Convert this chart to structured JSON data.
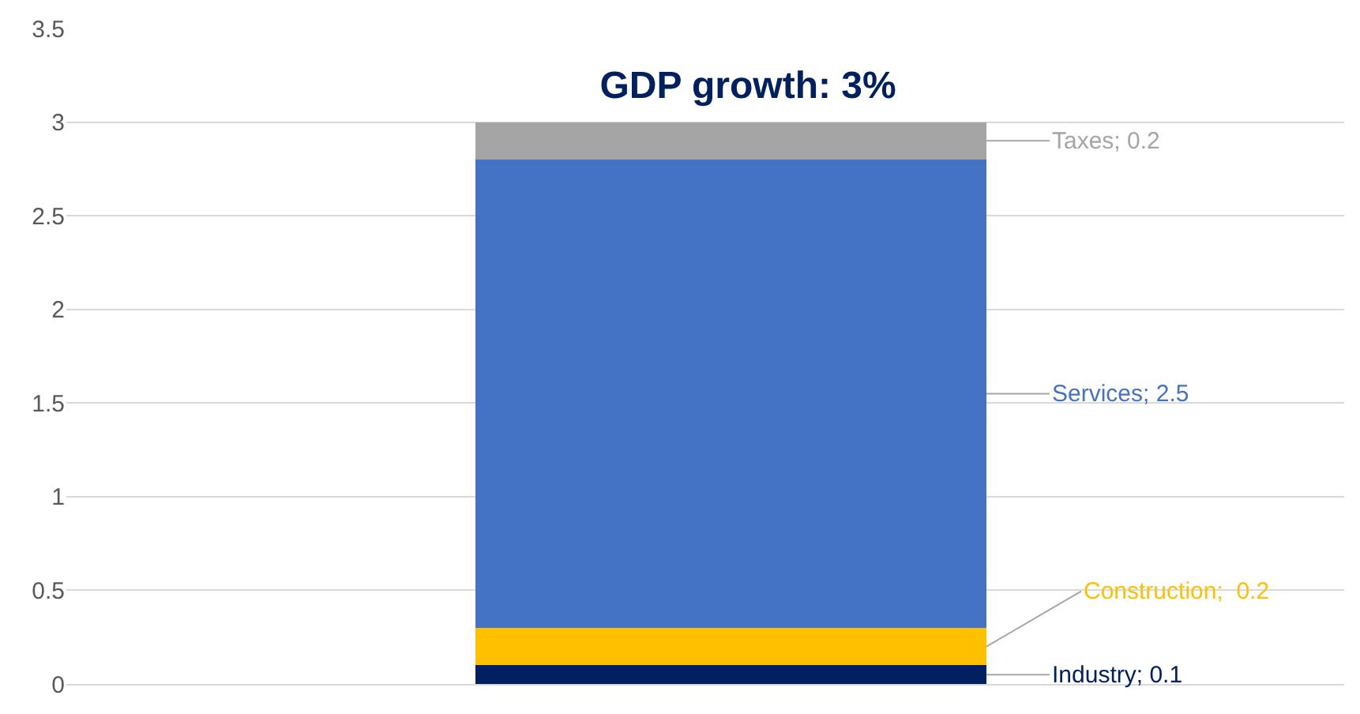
{
  "chart_data": {
    "type": "bar",
    "title": "GDP growth: 3%",
    "stacked": true,
    "categories": [
      null
    ],
    "series": [
      {
        "name": "Industry",
        "color": "#002060",
        "values": [
          0.1
        ],
        "value_labels": [
          "; 0.1"
        ]
      },
      {
        "name": "Construction",
        "color": "#ffc000",
        "values": [
          0.2
        ],
        "value_labels": [
          ";  0.2"
        ]
      },
      {
        "name": "Services",
        "color": "#4472c4",
        "values": [
          2.5
        ],
        "value_labels": [
          "; 2.5"
        ]
      },
      {
        "name": "Taxes",
        "color": "#a5a5a5",
        "values": [
          0.2
        ],
        "value_labels": [
          "; 0.2"
        ]
      }
    ],
    "ylim": [
      0,
      3.5
    ],
    "yticks": [
      0,
      0.5,
      1,
      1.5,
      2,
      2.5,
      3,
      3.5
    ],
    "grid": "y",
    "legend": false
  }
}
